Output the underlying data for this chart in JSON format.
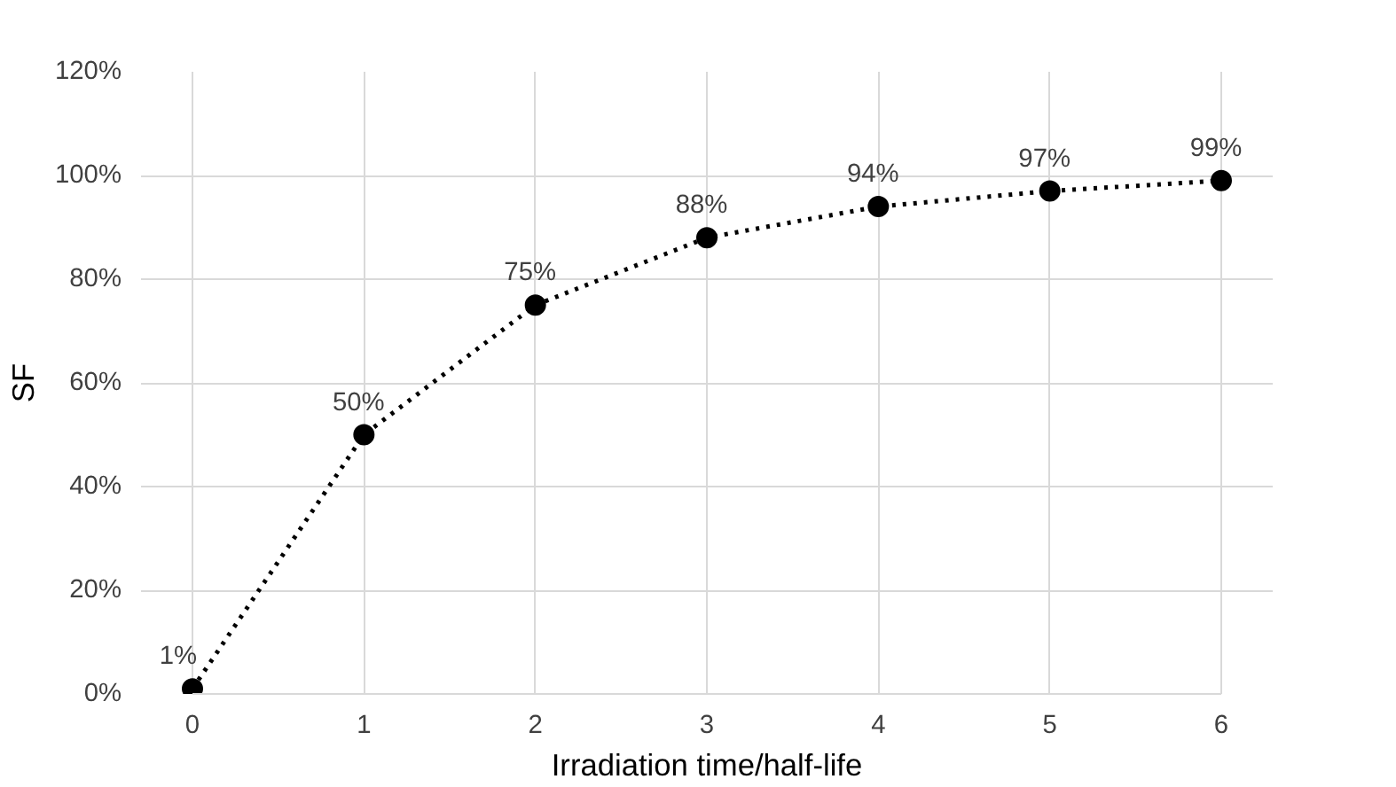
{
  "chart_data": {
    "type": "line",
    "xlabel": "Irradiation time/half-life",
    "ylabel": "SF",
    "x": [
      0,
      1,
      2,
      3,
      4,
      5,
      6
    ],
    "series": [
      {
        "color": "#000000",
        "values": [
          1,
          50,
          75,
          88,
          94,
          97,
          99
        ],
        "value_labels": [
          "1%",
          "50%",
          "75%",
          "88%",
          "94%",
          "97%",
          "99%"
        ]
      }
    ],
    "xlim": [
      0,
      6
    ],
    "xticks": [
      0,
      1,
      2,
      3,
      4,
      5,
      6
    ],
    "ylim": [
      0,
      120
    ],
    "yticks": [
      {
        "value": 0,
        "label": "0%"
      },
      {
        "value": 20,
        "label": "20%"
      },
      {
        "value": 40,
        "label": "40%"
      },
      {
        "value": 60,
        "label": "60%"
      },
      {
        "value": 80,
        "label": "80%"
      },
      {
        "value": 100,
        "label": "100%"
      },
      {
        "value": 120,
        "label": "120%"
      }
    ],
    "grid": true,
    "marker": "circle",
    "line_style": "dotted"
  }
}
